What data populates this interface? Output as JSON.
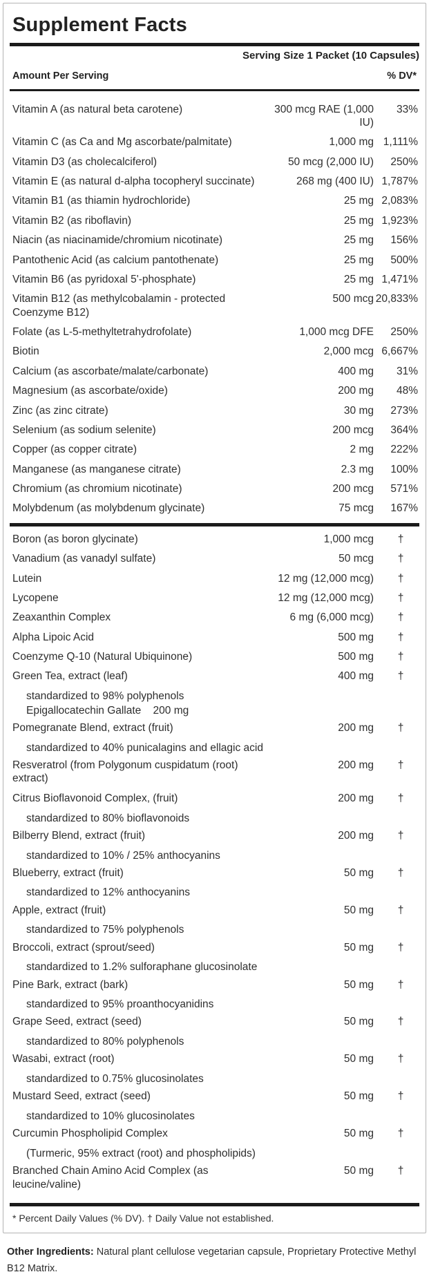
{
  "label": {
    "title": "Supplement Facts",
    "serving_size": "Serving Size 1 Packet (10 Capsules)",
    "columns": {
      "amount_header": "Amount Per Serving",
      "dv_header": "% DV*"
    },
    "colors": {
      "bar": "#1b1b1b",
      "text": "#2e2e2e",
      "border": "#b3b3b3"
    },
    "sections": [
      {
        "rows": [
          {
            "name": "Vitamin A (as natural beta carotene)",
            "amount": "300 mcg RAE (1,000 IU)",
            "dv": "33%"
          },
          {
            "name": "Vitamin C (as Ca and Mg ascorbate/palmitate)",
            "amount": "1,000 mg",
            "dv": "1,111%"
          },
          {
            "name": "Vitamin D3 (as cholecalciferol)",
            "amount": "50 mcg (2,000 IU)",
            "dv": "250%"
          },
          {
            "name": "Vitamin E (as natural d-alpha tocopheryl succinate)",
            "amount": "268 mg (400 IU)",
            "dv": "1,787%"
          },
          {
            "name": "Vitamin B1 (as thiamin hydrochloride)",
            "amount": "25 mg",
            "dv": "2,083%"
          },
          {
            "name": "Vitamin B2 (as riboflavin)",
            "amount": "25 mg",
            "dv": "1,923%"
          },
          {
            "name": "Niacin (as niacinamide/chromium nicotinate)",
            "amount": "25 mg",
            "dv": "156%"
          },
          {
            "name": "Pantothenic Acid (as calcium pantothenate)",
            "amount": "25 mg",
            "dv": "500%"
          },
          {
            "name": "Vitamin B6 (as pyridoxal 5'-phosphate)",
            "amount": "25 mg",
            "dv": "1,471%"
          },
          {
            "name": "Vitamin B12 (as methylcobalamin - protected Coenzyme B12)",
            "amount": "500 mcg",
            "dv": "20,833%"
          },
          {
            "name": "Folate (as L-5-methyltetrahydrofolate)",
            "amount": "1,000 mcg DFE",
            "dv": "250%"
          },
          {
            "name": "Biotin",
            "amount": "2,000 mcg",
            "dv": "6,667%"
          },
          {
            "name": "Calcium (as ascorbate/malate/carbonate)",
            "amount": "400 mg",
            "dv": "31%"
          },
          {
            "name": "Magnesium (as ascorbate/oxide)",
            "amount": "200 mg",
            "dv": "48%"
          },
          {
            "name": "Zinc (as zinc citrate)",
            "amount": "30 mg",
            "dv": "273%"
          },
          {
            "name": "Selenium (as sodium selenite)",
            "amount": "200 mcg",
            "dv": "364%"
          },
          {
            "name": "Copper (as copper citrate)",
            "amount": "2 mg",
            "dv": "222%"
          },
          {
            "name": "Manganese (as manganese citrate)",
            "amount": "2.3 mg",
            "dv": "100%"
          },
          {
            "name": "Chromium (as chromium nicotinate)",
            "amount": "200 mcg",
            "dv": "571%"
          },
          {
            "name": "Molybdenum (as molybdenum glycinate)",
            "amount": "75 mcg",
            "dv": "167%"
          }
        ]
      },
      {
        "rows": [
          {
            "name": "Boron (as boron glycinate)",
            "amount": "1,000 mcg",
            "dv": "†"
          },
          {
            "name": "Vanadium (as vanadyl sulfate)",
            "amount": "50 mcg",
            "dv": "†"
          },
          {
            "name": "Lutein",
            "amount": "12 mg (12,000 mcg)",
            "dv": "†"
          },
          {
            "name": "Lycopene",
            "amount": "12 mg (12,000 mcg)",
            "dv": "†"
          },
          {
            "name": "Zeaxanthin Complex",
            "amount": "6 mg (6,000 mcg)",
            "dv": "†"
          },
          {
            "name": "Alpha Lipoic Acid",
            "amount": "500 mg",
            "dv": "†"
          },
          {
            "name": "Coenzyme Q-10 (Natural Ubiquinone)",
            "amount": "500 mg",
            "dv": "†"
          },
          {
            "name": "Green Tea, extract (leaf)",
            "amount": "400 mg",
            "dv": "†",
            "subs": [
              "standardized to 98% polyphenols",
              "Epigallocatechin Gallate    200 mg"
            ]
          },
          {
            "name": "Pomegranate Blend, extract (fruit)",
            "amount": "200 mg",
            "dv": "†",
            "subs": [
              "standardized to 40% punicalagins and ellagic acid"
            ]
          },
          {
            "name": "Resveratrol (from Polygonum cuspidatum (root) extract)",
            "amount": "200 mg",
            "dv": "†"
          },
          {
            "name": "Citrus Bioflavonoid Complex, (fruit)",
            "amount": "200 mg",
            "dv": "†",
            "subs": [
              "standardized to 80% bioflavonoids"
            ]
          },
          {
            "name": "Bilberry Blend, extract (fruit)",
            "amount": "200 mg",
            "dv": "†",
            "subs": [
              "standardized to 10% / 25% anthocyanins"
            ]
          },
          {
            "name": "Blueberry, extract (fruit)",
            "amount": "50 mg",
            "dv": "†",
            "subs": [
              "standardized to 12% anthocyanins"
            ]
          },
          {
            "name": "Apple, extract (fruit)",
            "amount": "50 mg",
            "dv": "†",
            "subs": [
              "standardized to 75% polyphenols"
            ]
          },
          {
            "name": "Broccoli, extract (sprout/seed)",
            "amount": "50 mg",
            "dv": "†",
            "subs": [
              "standardized to 1.2% sulforaphane glucosinolate"
            ]
          },
          {
            "name": "Pine Bark, extract (bark)",
            "amount": "50 mg",
            "dv": "†",
            "subs": [
              "standardized to 95% proanthocyanidins"
            ]
          },
          {
            "name": "Grape Seed, extract (seed)",
            "amount": "50 mg",
            "dv": "†",
            "subs": [
              "standardized to 80% polyphenols"
            ]
          },
          {
            "name": "Wasabi, extract (root)",
            "amount": "50 mg",
            "dv": "†",
            "subs": [
              "standardized to 0.75% glucosinolates"
            ]
          },
          {
            "name": "Mustard Seed, extract (seed)",
            "amount": "50 mg",
            "dv": "†",
            "subs": [
              "standardized to 10% glucosinolates"
            ]
          },
          {
            "name": "Curcumin Phospholipid Complex",
            "amount": "50 mg",
            "dv": "†",
            "subs": [
              "(Turmeric, 95% extract (root) and phospholipids)"
            ]
          },
          {
            "name": "Branched Chain Amino Acid Complex (as leucine/valine)",
            "amount": "50 mg",
            "dv": "†"
          }
        ]
      }
    ],
    "footnote": "* Percent Daily Values (% DV). † Daily Value not established.",
    "other_ingredients_label": "Other Ingredients:",
    "other_ingredients_text": " Natural plant cellulose vegetarian capsule, Proprietary Protective Methyl B12 Matrix."
  }
}
